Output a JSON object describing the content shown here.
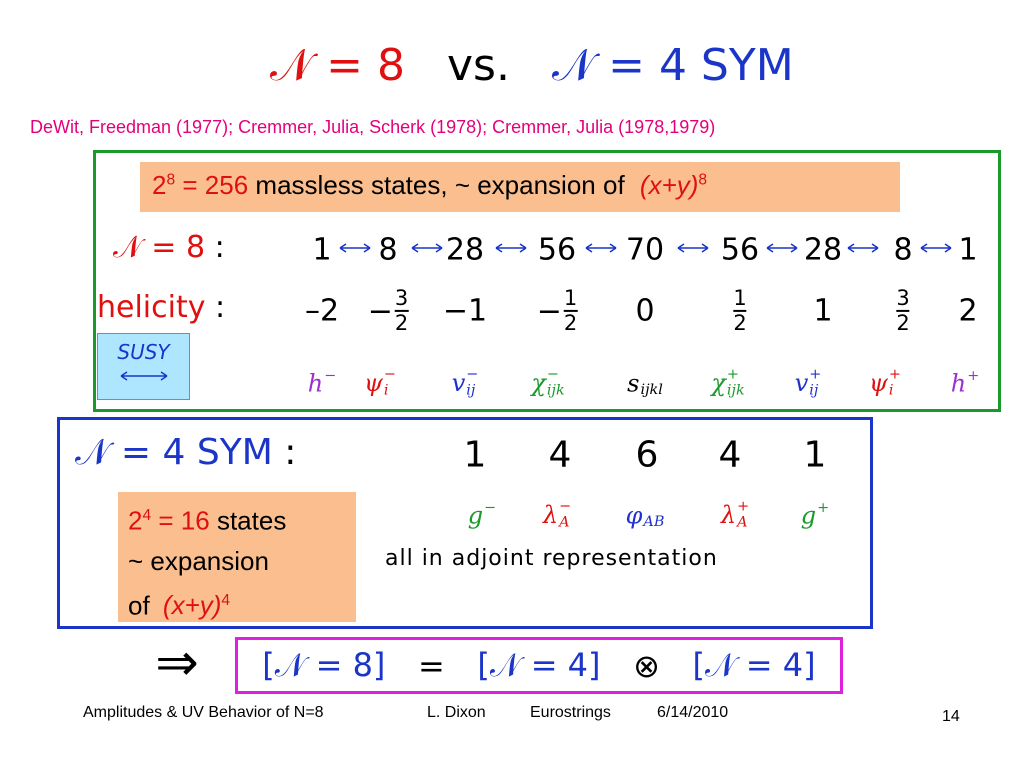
{
  "title": {
    "n8": "𝒩 = 8",
    "vs": "vs.",
    "n4": "𝒩 = 4 SYM"
  },
  "citation": "DeWit, Freedman (1977); Cremmer, Julia, Scherk (1978); Cremmer, Julia (1978,1979)",
  "n8_multiplet": {
    "note": {
      "base": "2",
      "exp": "8",
      "eq": "= 256",
      "text": "massless states, ~ expansion of",
      "formula": "(x+y)",
      "formula_exp": "8"
    },
    "label": "𝒩 = 8",
    "colon": ":",
    "counts": [
      "1",
      "8",
      "28",
      "56",
      "70",
      "56",
      "28",
      "8",
      "1"
    ],
    "helicity_label": "helicity",
    "helicity_colon": ":",
    "helicities": [
      "–2",
      {
        "sign": "−",
        "num": "3",
        "den": "2"
      },
      "−1",
      {
        "sign": "−",
        "num": "1",
        "den": "2"
      },
      "0",
      {
        "num": "1",
        "den": "2"
      },
      "1",
      {
        "num": "3",
        "den": "2"
      },
      "2"
    ],
    "susy": "SUSY",
    "fields": [
      {
        "symbol": "h",
        "sup": "−",
        "color": "#9b30d0"
      },
      {
        "symbol": "ψ",
        "sub": "i",
        "sup": "−",
        "color": "#e01010"
      },
      {
        "symbol": "v",
        "sub": "ij",
        "sup": "−",
        "color": "#2030d0"
      },
      {
        "symbol": "χ",
        "sub": "ijk",
        "sup": "−",
        "color": "#1a9a2a"
      },
      {
        "symbol": "s",
        "sub": "ijkl",
        "color": "#000000"
      },
      {
        "symbol": "χ",
        "sub": "ijk",
        "sup": "+",
        "color": "#1a9a2a"
      },
      {
        "symbol": "v",
        "sub": "ij",
        "sup": "+",
        "color": "#2030d0"
      },
      {
        "symbol": "ψ",
        "sub": "i",
        "sup": "+",
        "color": "#e01010"
      },
      {
        "symbol": "h",
        "sup": "+",
        "color": "#9b30d0"
      }
    ]
  },
  "n4_multiplet": {
    "label": "𝒩 = 4 SYM",
    "colon": ":",
    "counts": [
      1,
      4,
      6,
      4,
      1
    ],
    "fields": [
      {
        "symbol": "g",
        "sup": "−",
        "color": "#1a9a2a"
      },
      {
        "symbol": "λ",
        "sub": "A",
        "sup": "−",
        "color": "#e01010"
      },
      {
        "symbol": "φ",
        "sub": "AB",
        "color": "#2030d0"
      },
      {
        "symbol": "λ",
        "sub": "A",
        "sup": "+",
        "color": "#e01010"
      },
      {
        "symbol": "g",
        "sup": "+",
        "color": "#1a9a2a"
      }
    ],
    "note": {
      "base": "2",
      "exp": "4",
      "eq": "= 16",
      "line1": "states",
      "line2": "~ expansion",
      "line3": "of",
      "formula": "(x+y)",
      "formula_exp": "4"
    },
    "adjoint": "all in adjoint representation"
  },
  "conclusion": {
    "implies": "⇒",
    "lhs": "[𝒩 = 8]",
    "eq": "=",
    "factor1": "[𝒩 = 4]",
    "otimes": "⊗",
    "factor2": "[𝒩 = 4]"
  },
  "footer": {
    "talk": "Amplitudes & UV Behavior of N=8",
    "author": "L. Dixon",
    "event": "Eurostrings",
    "date": "6/14/2010",
    "page": "14"
  }
}
